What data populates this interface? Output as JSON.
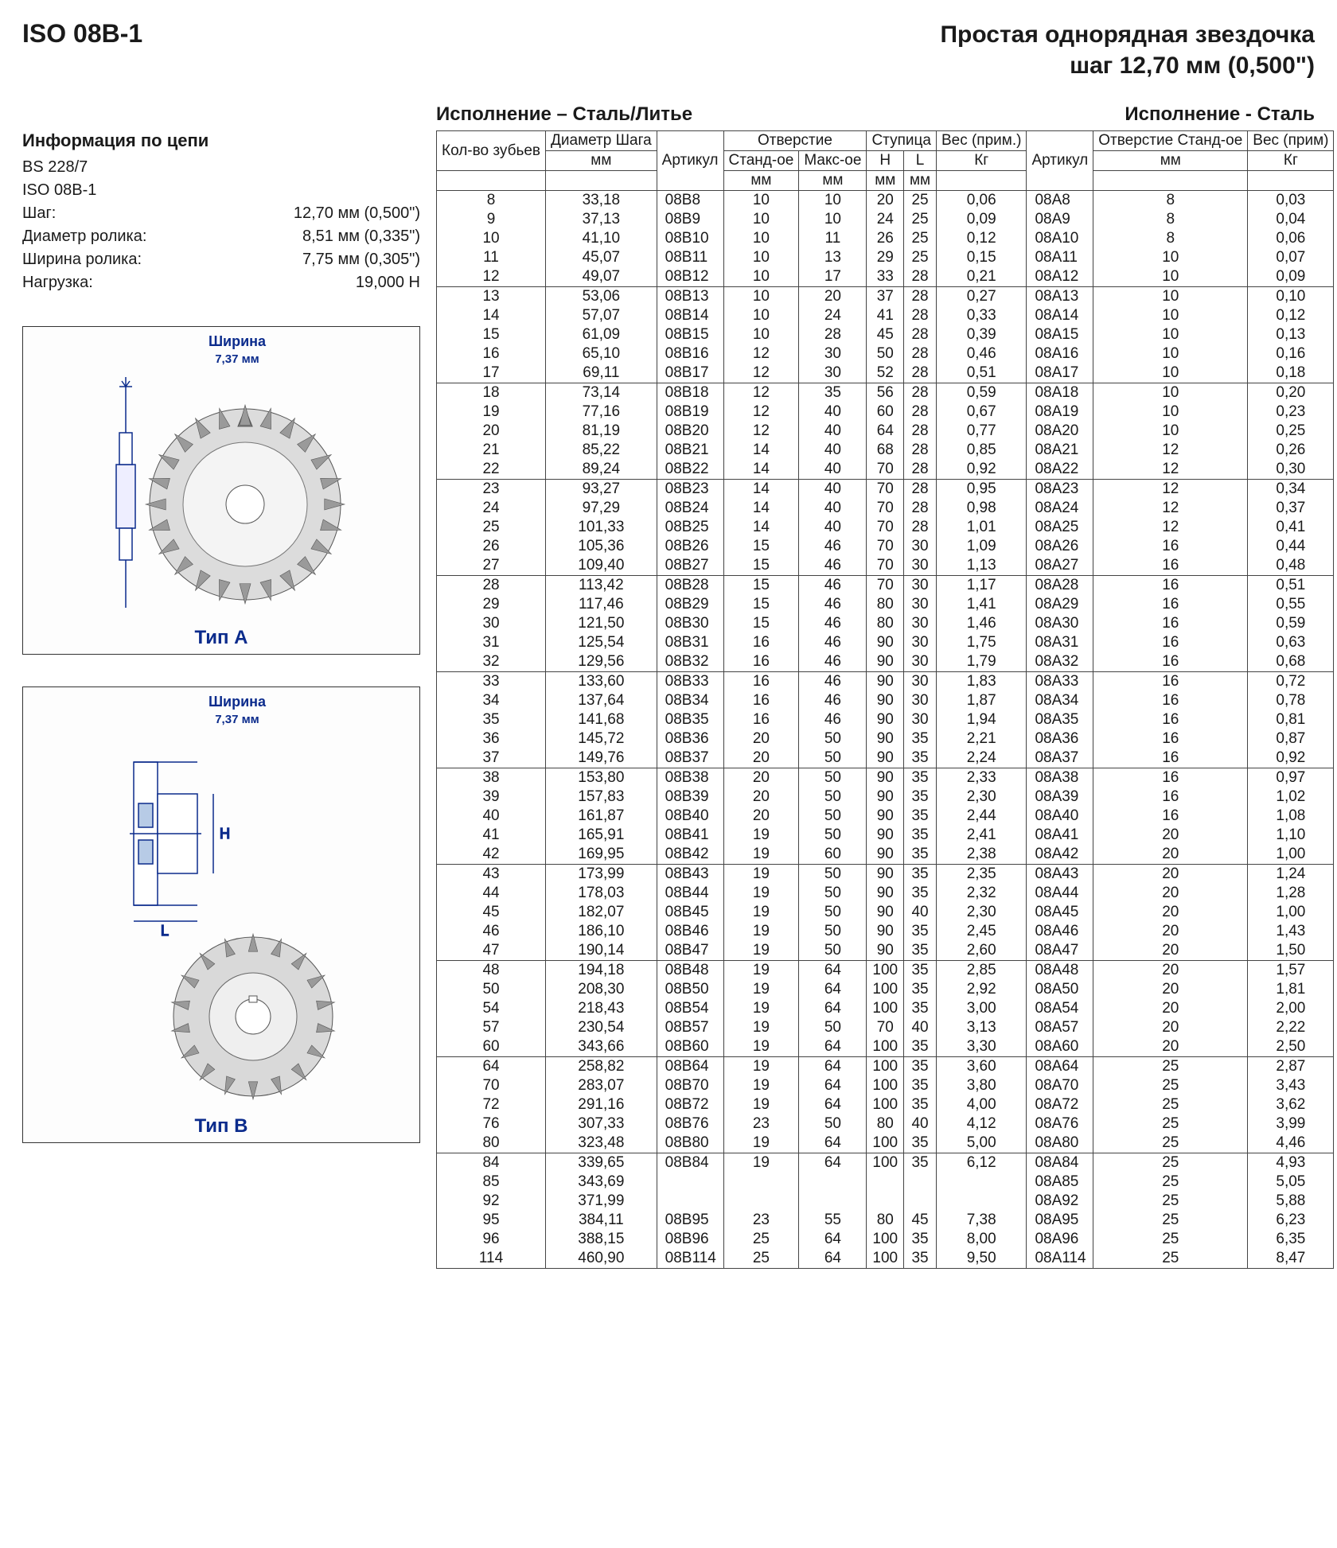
{
  "header": {
    "left": "ISO 08B-1",
    "right_line1": "Простая однорядная звездочка",
    "right_line2": "шаг 12,70 мм (0,500\")"
  },
  "subhead": {
    "left": "Исполнение – Сталь/Литье",
    "right": "Исполнение - Сталь"
  },
  "chain_info": {
    "title": "Информация по цепи",
    "lines": [
      {
        "label": "BS 228/7",
        "value": ""
      },
      {
        "label": "ISO 08B-1",
        "value": ""
      },
      {
        "label": "Шаг:",
        "value": "12,70 мм (0,500\")"
      },
      {
        "label": "Диаметр ролика:",
        "value": "8,51 мм (0,335\")"
      },
      {
        "label": "Ширина ролика:",
        "value": "7,75 мм (0,305\")"
      },
      {
        "label": "Нагрузка:",
        "value": "19,000 Н"
      }
    ]
  },
  "diagrams": {
    "a": {
      "width_label": "Ширина",
      "width_value": "7,37 мм",
      "caption": "Тип A"
    },
    "b": {
      "width_label": "Ширина",
      "width_value": "7,37 мм",
      "caption": "Тип B"
    }
  },
  "table": {
    "head": {
      "r1": [
        "Кол-во зубьев",
        "Диаметр Шага",
        "Артикул",
        "Отверстие",
        "Ступица",
        "Вес (прим.)",
        "Артикул",
        "Отверстие Станд-ое",
        "Вес (прим)"
      ],
      "r2_hole": [
        "Станд-ое",
        "Макс-ое"
      ],
      "r2_hub": [
        "H",
        "L"
      ],
      "r3": [
        "мм",
        "мм",
        "мм",
        "мм",
        "мм",
        "Кг",
        "мм",
        "Кг"
      ]
    },
    "groups": [
      [
        [
          "8",
          "33,18",
          "08B8",
          "10",
          "10",
          "20",
          "25",
          "0,06",
          "08A8",
          "8",
          "0,03"
        ],
        [
          "9",
          "37,13",
          "08B9",
          "10",
          "10",
          "24",
          "25",
          "0,09",
          "08A9",
          "8",
          "0,04"
        ],
        [
          "10",
          "41,10",
          "08B10",
          "10",
          "11",
          "26",
          "25",
          "0,12",
          "08A10",
          "8",
          "0,06"
        ],
        [
          "11",
          "45,07",
          "08B11",
          "10",
          "13",
          "29",
          "25",
          "0,15",
          "08A11",
          "10",
          "0,07"
        ],
        [
          "12",
          "49,07",
          "08B12",
          "10",
          "17",
          "33",
          "28",
          "0,21",
          "08A12",
          "10",
          "0,09"
        ]
      ],
      [
        [
          "13",
          "53,06",
          "08B13",
          "10",
          "20",
          "37",
          "28",
          "0,27",
          "08A13",
          "10",
          "0,10"
        ],
        [
          "14",
          "57,07",
          "08B14",
          "10",
          "24",
          "41",
          "28",
          "0,33",
          "08A14",
          "10",
          "0,12"
        ],
        [
          "15",
          "61,09",
          "08B15",
          "10",
          "28",
          "45",
          "28",
          "0,39",
          "08A15",
          "10",
          "0,13"
        ],
        [
          "16",
          "65,10",
          "08B16",
          "12",
          "30",
          "50",
          "28",
          "0,46",
          "08A16",
          "10",
          "0,16"
        ],
        [
          "17",
          "69,11",
          "08B17",
          "12",
          "30",
          "52",
          "28",
          "0,51",
          "08A17",
          "10",
          "0,18"
        ]
      ],
      [
        [
          "18",
          "73,14",
          "08B18",
          "12",
          "35",
          "56",
          "28",
          "0,59",
          "08A18",
          "10",
          "0,20"
        ],
        [
          "19",
          "77,16",
          "08B19",
          "12",
          "40",
          "60",
          "28",
          "0,67",
          "08A19",
          "10",
          "0,23"
        ],
        [
          "20",
          "81,19",
          "08B20",
          "12",
          "40",
          "64",
          "28",
          "0,77",
          "08A20",
          "10",
          "0,25"
        ],
        [
          "21",
          "85,22",
          "08B21",
          "14",
          "40",
          "68",
          "28",
          "0,85",
          "08A21",
          "12",
          "0,26"
        ],
        [
          "22",
          "89,24",
          "08B22",
          "14",
          "40",
          "70",
          "28",
          "0,92",
          "08A22",
          "12",
          "0,30"
        ]
      ],
      [
        [
          "23",
          "93,27",
          "08B23",
          "14",
          "40",
          "70",
          "28",
          "0,95",
          "08A23",
          "12",
          "0,34"
        ],
        [
          "24",
          "97,29",
          "08B24",
          "14",
          "40",
          "70",
          "28",
          "0,98",
          "08A24",
          "12",
          "0,37"
        ],
        [
          "25",
          "101,33",
          "08B25",
          "14",
          "40",
          "70",
          "28",
          "1,01",
          "08A25",
          "12",
          "0,41"
        ],
        [
          "26",
          "105,36",
          "08B26",
          "15",
          "46",
          "70",
          "30",
          "1,09",
          "08A26",
          "16",
          "0,44"
        ],
        [
          "27",
          "109,40",
          "08B27",
          "15",
          "46",
          "70",
          "30",
          "1,13",
          "08A27",
          "16",
          "0,48"
        ]
      ],
      [
        [
          "28",
          "113,42",
          "08B28",
          "15",
          "46",
          "70",
          "30",
          "1,17",
          "08A28",
          "16",
          "0,51"
        ],
        [
          "29",
          "117,46",
          "08B29",
          "15",
          "46",
          "80",
          "30",
          "1,41",
          "08A29",
          "16",
          "0,55"
        ],
        [
          "30",
          "121,50",
          "08B30",
          "15",
          "46",
          "80",
          "30",
          "1,46",
          "08A30",
          "16",
          "0,59"
        ],
        [
          "31",
          "125,54",
          "08B31",
          "16",
          "46",
          "90",
          "30",
          "1,75",
          "08A31",
          "16",
          "0,63"
        ],
        [
          "32",
          "129,56",
          "08B32",
          "16",
          "46",
          "90",
          "30",
          "1,79",
          "08A32",
          "16",
          "0,68"
        ]
      ],
      [
        [
          "33",
          "133,60",
          "08B33",
          "16",
          "46",
          "90",
          "30",
          "1,83",
          "08A33",
          "16",
          "0,72"
        ],
        [
          "34",
          "137,64",
          "08B34",
          "16",
          "46",
          "90",
          "30",
          "1,87",
          "08A34",
          "16",
          "0,78"
        ],
        [
          "35",
          "141,68",
          "08B35",
          "16",
          "46",
          "90",
          "30",
          "1,94",
          "08A35",
          "16",
          "0,81"
        ],
        [
          "36",
          "145,72",
          "08B36",
          "20",
          "50",
          "90",
          "35",
          "2,21",
          "08A36",
          "16",
          "0,87"
        ],
        [
          "37",
          "149,76",
          "08B37",
          "20",
          "50",
          "90",
          "35",
          "2,24",
          "08A37",
          "16",
          "0,92"
        ]
      ],
      [
        [
          "38",
          "153,80",
          "08B38",
          "20",
          "50",
          "90",
          "35",
          "2,33",
          "08A38",
          "16",
          "0,97"
        ],
        [
          "39",
          "157,83",
          "08B39",
          "20",
          "50",
          "90",
          "35",
          "2,30",
          "08A39",
          "16",
          "1,02"
        ],
        [
          "40",
          "161,87",
          "08B40",
          "20",
          "50",
          "90",
          "35",
          "2,44",
          "08A40",
          "16",
          "1,08"
        ],
        [
          "41",
          "165,91",
          "08B41",
          "19",
          "50",
          "90",
          "35",
          "2,41",
          "08A41",
          "20",
          "1,10"
        ],
        [
          "42",
          "169,95",
          "08B42",
          "19",
          "60",
          "90",
          "35",
          "2,38",
          "08A42",
          "20",
          "1,00"
        ]
      ],
      [
        [
          "43",
          "173,99",
          "08B43",
          "19",
          "50",
          "90",
          "35",
          "2,35",
          "08A43",
          "20",
          "1,24"
        ],
        [
          "44",
          "178,03",
          "08B44",
          "19",
          "50",
          "90",
          "35",
          "2,32",
          "08A44",
          "20",
          "1,28"
        ],
        [
          "45",
          "182,07",
          "08B45",
          "19",
          "50",
          "90",
          "40",
          "2,30",
          "08A45",
          "20",
          "1,00"
        ],
        [
          "46",
          "186,10",
          "08B46",
          "19",
          "50",
          "90",
          "35",
          "2,45",
          "08A46",
          "20",
          "1,43"
        ],
        [
          "47",
          "190,14",
          "08B47",
          "19",
          "50",
          "90",
          "35",
          "2,60",
          "08A47",
          "20",
          "1,50"
        ]
      ],
      [
        [
          "48",
          "194,18",
          "08B48",
          "19",
          "64",
          "100",
          "35",
          "2,85",
          "08A48",
          "20",
          "1,57"
        ],
        [
          "50",
          "208,30",
          "08B50",
          "19",
          "64",
          "100",
          "35",
          "2,92",
          "08A50",
          "20",
          "1,81"
        ],
        [
          "54",
          "218,43",
          "08B54",
          "19",
          "64",
          "100",
          "35",
          "3,00",
          "08A54",
          "20",
          "2,00"
        ],
        [
          "57",
          "230,54",
          "08B57",
          "19",
          "50",
          "70",
          "40",
          "3,13",
          "08A57",
          "20",
          "2,22"
        ],
        [
          "60",
          "343,66",
          "08B60",
          "19",
          "64",
          "100",
          "35",
          "3,30",
          "08A60",
          "20",
          "2,50"
        ]
      ],
      [
        [
          "64",
          "258,82",
          "08B64",
          "19",
          "64",
          "100",
          "35",
          "3,60",
          "08A64",
          "25",
          "2,87"
        ],
        [
          "70",
          "283,07",
          "08B70",
          "19",
          "64",
          "100",
          "35",
          "3,80",
          "08A70",
          "25",
          "3,43"
        ],
        [
          "72",
          "291,16",
          "08B72",
          "19",
          "64",
          "100",
          "35",
          "4,00",
          "08A72",
          "25",
          "3,62"
        ],
        [
          "76",
          "307,33",
          "08B76",
          "23",
          "50",
          "80",
          "40",
          "4,12",
          "08A76",
          "25",
          "3,99"
        ],
        [
          "80",
          "323,48",
          "08B80",
          "19",
          "64",
          "100",
          "35",
          "5,00",
          "08A80",
          "25",
          "4,46"
        ]
      ],
      [
        [
          "84",
          "339,65",
          "08B84",
          "19",
          "64",
          "100",
          "35",
          "6,12",
          "08A84",
          "25",
          "4,93"
        ],
        [
          "85",
          "343,69",
          "",
          "",
          "",
          "",
          "",
          "",
          "08A85",
          "25",
          "5,05"
        ],
        [
          "92",
          "371,99",
          "",
          "",
          "",
          "",
          "",
          "",
          "08A92",
          "25",
          "5,88"
        ],
        [
          "95",
          "384,11",
          "08B95",
          "23",
          "55",
          "80",
          "45",
          "7,38",
          "08A95",
          "25",
          "6,23"
        ],
        [
          "96",
          "388,15",
          "08B96",
          "25",
          "64",
          "100",
          "35",
          "8,00",
          "08A96",
          "25",
          "6,35"
        ],
        [
          "114",
          "460,90",
          "08B114",
          "25",
          "64",
          "100",
          "35",
          "9,50",
          "08A114",
          "25",
          "8,47"
        ]
      ]
    ]
  },
  "colors": {
    "text": "#1a1a1a",
    "accent": "#0b2b8c",
    "border": "#444444",
    "background": "#ffffff"
  }
}
